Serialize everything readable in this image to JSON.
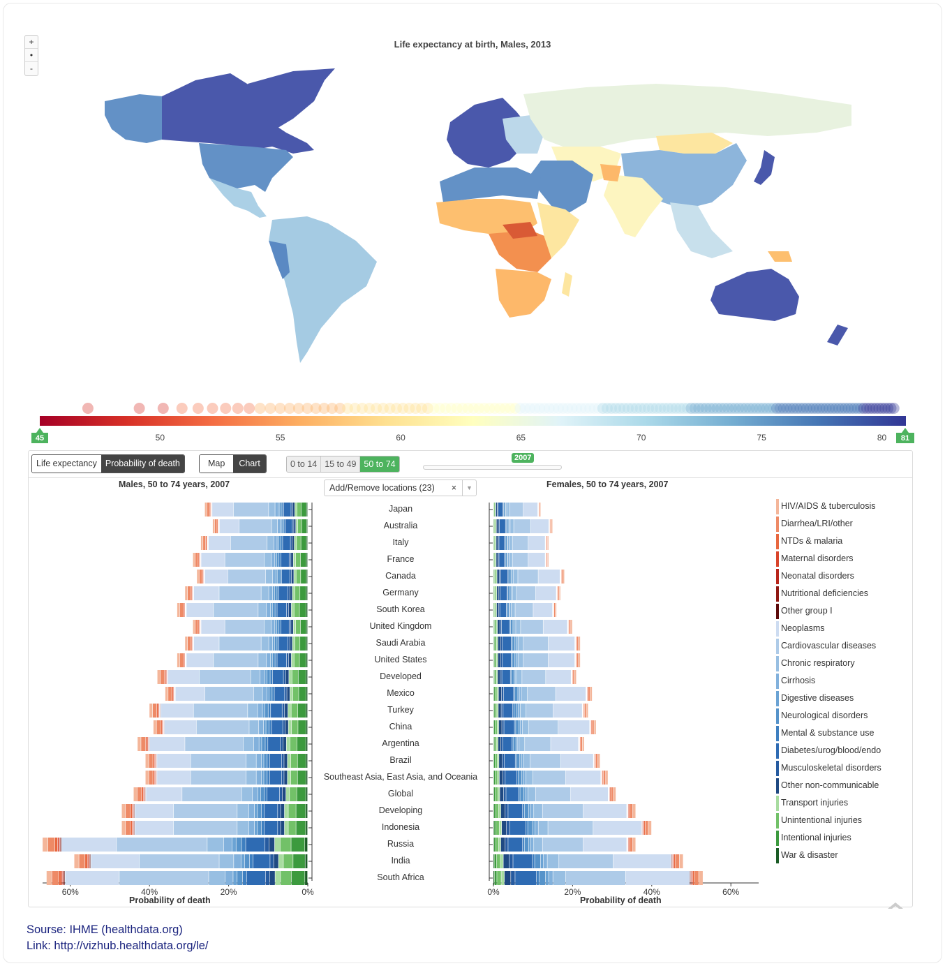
{
  "map": {
    "title": "Life expectancy at birth, Males, 2013",
    "zoom": {
      "plus": "+",
      "reset": "•",
      "minus": "-"
    }
  },
  "legend": {
    "min": "45",
    "max": "81",
    "ticks": [
      "50",
      "55",
      "60",
      "65",
      "70",
      "75",
      "80"
    ],
    "colors": [
      "#a50026",
      "#d73027",
      "#f46d43",
      "#fdae61",
      "#fee090",
      "#ffffbf",
      "#e0f3f8",
      "#abd9e9",
      "#74add1",
      "#4575b4",
      "#313695"
    ]
  },
  "controls": {
    "measure_tabs": [
      {
        "label": "Life expectancy",
        "active": false
      },
      {
        "label": "Probability of death",
        "active": true
      }
    ],
    "view_tabs": [
      {
        "label": "Map",
        "active": false
      },
      {
        "label": "Chart",
        "active": true
      }
    ],
    "age_groups": [
      {
        "label": "0 to 14",
        "active": false
      },
      {
        "label": "15 to 49",
        "active": false
      },
      {
        "label": "50 to 74",
        "active": true
      }
    ],
    "year": "2007",
    "locations_dropdown": "Add/Remove locations (23)",
    "clear_glyph": "×"
  },
  "chart_data": [
    {
      "type": "bar",
      "orientation": "horizontal",
      "stacked": true,
      "title": "Males, 50 to 74 years, 2007",
      "xlabel": "Probability of death",
      "xlim": [
        0,
        0.67
      ],
      "x_ticks": [
        "60%",
        "40%",
        "20%",
        "0%"
      ],
      "categories": [
        "Japan",
        "Australia",
        "Italy",
        "France",
        "Canada",
        "Germany",
        "South Korea",
        "United Kingdom",
        "Saudi Arabia",
        "United States",
        "Developed",
        "Mexico",
        "Turkey",
        "China",
        "Argentina",
        "Brazil",
        "Southeast Asia, East Asia, and Oceania",
        "Global",
        "Developing",
        "Indonesia",
        "Russia",
        "India",
        "South Africa"
      ],
      "totals": [
        0.26,
        0.24,
        0.27,
        0.29,
        0.28,
        0.31,
        0.33,
        0.29,
        0.31,
        0.33,
        0.38,
        0.36,
        0.4,
        0.39,
        0.43,
        0.41,
        0.41,
        0.44,
        0.47,
        0.47,
        0.67,
        0.59,
        0.66
      ]
    },
    {
      "type": "bar",
      "orientation": "horizontal",
      "stacked": true,
      "title": "Females, 50 to 74 years, 2007",
      "xlabel": "Probability of death",
      "xlim": [
        0,
        0.67
      ],
      "x_ticks": [
        "0%",
        "20%",
        "40%",
        "60%"
      ],
      "categories": [
        "Japan",
        "Australia",
        "Italy",
        "France",
        "Canada",
        "Germany",
        "South Korea",
        "United Kingdom",
        "Saudi Arabia",
        "United States",
        "Developed",
        "Mexico",
        "Turkey",
        "China",
        "Argentina",
        "Brazil",
        "Southeast Asia, East Asia, and Oceania",
        "Global",
        "Developing",
        "Indonesia",
        "Russia",
        "India",
        "South Africa"
      ],
      "totals": [
        0.12,
        0.15,
        0.14,
        0.14,
        0.18,
        0.17,
        0.16,
        0.2,
        0.22,
        0.22,
        0.21,
        0.25,
        0.24,
        0.26,
        0.23,
        0.27,
        0.29,
        0.31,
        0.36,
        0.4,
        0.36,
        0.48,
        0.53
      ]
    }
  ],
  "causes": [
    {
      "label": "HIV/AIDS & tuberculosis",
      "color": "#f4b69a"
    },
    {
      "label": "Diarrhea/LRI/other",
      "color": "#ee8a66"
    },
    {
      "label": "NTDs & malaria",
      "color": "#e8673f"
    },
    {
      "label": "Maternal disorders",
      "color": "#d9442a"
    },
    {
      "label": "Neonatal disorders",
      "color": "#b8251b"
    },
    {
      "label": "Nutritional deficiencies",
      "color": "#8f1712"
    },
    {
      "label": "Other group I",
      "color": "#5c0a0a"
    },
    {
      "label": "Neoplasms",
      "color": "#cddcf1"
    },
    {
      "label": "Cardiovascular diseases",
      "color": "#aecbe8"
    },
    {
      "label": "Chronic respiratory",
      "color": "#98bfe2"
    },
    {
      "label": "Cirrhosis",
      "color": "#82b1dc"
    },
    {
      "label": "Digestive diseases",
      "color": "#6ba3d4"
    },
    {
      "label": "Neurological disorders",
      "color": "#5693ca"
    },
    {
      "label": "Mental & substance use",
      "color": "#3e7fc0"
    },
    {
      "label": "Diabetes/urog/blood/endo",
      "color": "#2e6bb3"
    },
    {
      "label": "Musculoskeletal disorders",
      "color": "#265ba0"
    },
    {
      "label": "Other non-communicable",
      "color": "#1f4982"
    },
    {
      "label": "Transport injuries",
      "color": "#a8dca0"
    },
    {
      "label": "Unintentional injuries",
      "color": "#72c168"
    },
    {
      "label": "Intentional injuries",
      "color": "#3c9a3e"
    },
    {
      "label": "War & disaster",
      "color": "#1a5b25"
    }
  ],
  "footer": {
    "source": "Sourse: IHME (healthdata.org)",
    "link": "Link: http://vizhub.healthdata.org/le/"
  }
}
